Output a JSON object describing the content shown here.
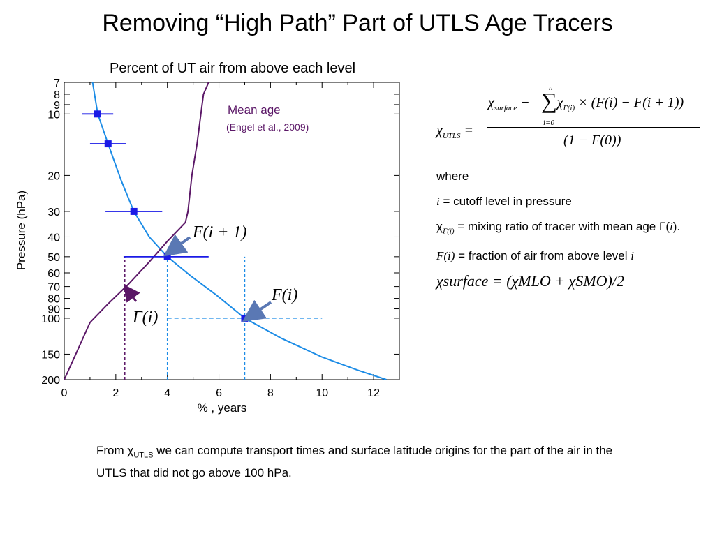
{
  "slide": {
    "title": "Removing “High Path” Part of UTLS Age Tracers",
    "bottom_text_pre": "From ",
    "bottom_chi": "χ",
    "bottom_sub": "UTLS",
    "bottom_text_post": " we can compute transport times and surface latitude origins for the part of the air in the UTLS that did not go above 100 hPa."
  },
  "formula": {
    "lhs_chi": "χ",
    "lhs_sub": "UTLS",
    "equals": "=",
    "num_chi1": "χ",
    "num_sub1": "surface",
    "num_minus": " − ",
    "sum_symbol": "∑",
    "sum_upper": "n",
    "sum_lower": "i=0",
    "num_chi2": "χ",
    "num_sub2": "Γ(i)",
    "num_rest": " × (F(i) − F(i + 1))",
    "denominator": "(1 − F(0))"
  },
  "notes": {
    "where": "where",
    "i_symbol": "i",
    "i_def": " = cutoff level in pressure",
    "chi_symbol": "χ",
    "chi_sub": "Γ(i)",
    "chi_def": " = mixing ratio of tracer with mean age ",
    "gamma_symbol": "Γ(",
    "gamma_i": "i",
    "gamma_close": ").",
    "F_symbol": "F(i)",
    "F_def": " = fraction of air from above level ",
    "F_i": "i",
    "surface_formula": "χsurface = (χMLO + χSMO)/2"
  },
  "chart_data": {
    "type": "line",
    "title": "Percent of UT air from above each level",
    "xlabel": "% , years",
    "ylabel": "Pressure (hPa)",
    "xlim": [
      0,
      13
    ],
    "ylim": [
      200,
      7
    ],
    "y_scale": "log",
    "x_ticks": [
      "0",
      "2",
      "4",
      "6",
      "8",
      "10",
      "12"
    ],
    "y_ticks": [
      {
        "v": 7,
        "label": "7"
      },
      {
        "v": 8,
        "label": "8"
      },
      {
        "v": 9,
        "label": "9"
      },
      {
        "v": 10,
        "label": "10"
      },
      {
        "v": 20,
        "label": "20"
      },
      {
        "v": 30,
        "label": "30"
      },
      {
        "v": 40,
        "label": "40"
      },
      {
        "v": 50,
        "label": "50"
      },
      {
        "v": 60,
        "label": "60"
      },
      {
        "v": 70,
        "label": "70"
      },
      {
        "v": 80,
        "label": "80"
      },
      {
        "v": 90,
        "label": "90"
      },
      {
        "v": 100,
        "label": "100"
      },
      {
        "v": 150,
        "label": "150"
      },
      {
        "v": 200,
        "label": "200"
      }
    ],
    "series": [
      {
        "name": "",
        "color": "#1c8ce6",
        "points": [
          [
            1.1,
            7
          ],
          [
            1.3,
            10
          ],
          [
            1.7,
            14
          ],
          [
            2.2,
            21
          ],
          [
            2.7,
            30
          ],
          [
            3.3,
            40
          ],
          [
            4.0,
            50
          ],
          [
            4.9,
            62
          ],
          [
            5.9,
            77
          ],
          [
            7.0,
            100
          ],
          [
            8.4,
            125
          ],
          [
            10.0,
            155
          ],
          [
            11.4,
            180
          ],
          [
            12.5,
            200
          ]
        ]
      },
      {
        "name": "Mean age",
        "color": "#5b1767",
        "points": [
          [
            5.6,
            7
          ],
          [
            5.4,
            8
          ],
          [
            5.3,
            10
          ],
          [
            5.15,
            14
          ],
          [
            4.95,
            20
          ],
          [
            4.8,
            30
          ],
          [
            4.7,
            34
          ],
          [
            4.0,
            42
          ],
          [
            3.3,
            53
          ],
          [
            2.5,
            68
          ],
          [
            1.7,
            85
          ],
          [
            1.0,
            105
          ],
          [
            0.5,
            145
          ],
          [
            0.0,
            200
          ]
        ]
      }
    ],
    "points": [
      {
        "x": 1.3,
        "y": 10,
        "xerr": [
          0.7,
          1.9
        ]
      },
      {
        "x": 1.7,
        "y": 14,
        "xerr": [
          1.0,
          2.4
        ]
      },
      {
        "x": 2.7,
        "y": 30,
        "xerr": [
          1.6,
          3.8
        ]
      },
      {
        "x": 4.0,
        "y": 50,
        "xerr": [
          2.3,
          5.6
        ]
      },
      {
        "x": 7.0,
        "y": 100,
        "xerr": null
      }
    ],
    "point_color": "#1a1ae6",
    "errorbar_color": "#1a1ae6",
    "guides": [
      {
        "kind": "vline",
        "x": 2.35,
        "y_from": 200,
        "y_to": 50,
        "color": "#5b1767"
      },
      {
        "kind": "vline",
        "x": 4.0,
        "y_from": 200,
        "y_to": 50,
        "color": "#1c8ce6"
      },
      {
        "kind": "vline",
        "x": 7.0,
        "y_from": 200,
        "y_to": 50,
        "color": "#1c8ce6"
      },
      {
        "kind": "hline",
        "y": 100,
        "x_from": 4.0,
        "x_to": 10.0,
        "color": "#1c8ce6"
      }
    ],
    "annotations": {
      "mean_age_label": "Mean age",
      "engel_ref": "(Engel et al., 2009)",
      "F_i_plus_1": "F(i + 1)",
      "F_i": "F(i)",
      "Gamma_i": "Γ(i)"
    }
  }
}
